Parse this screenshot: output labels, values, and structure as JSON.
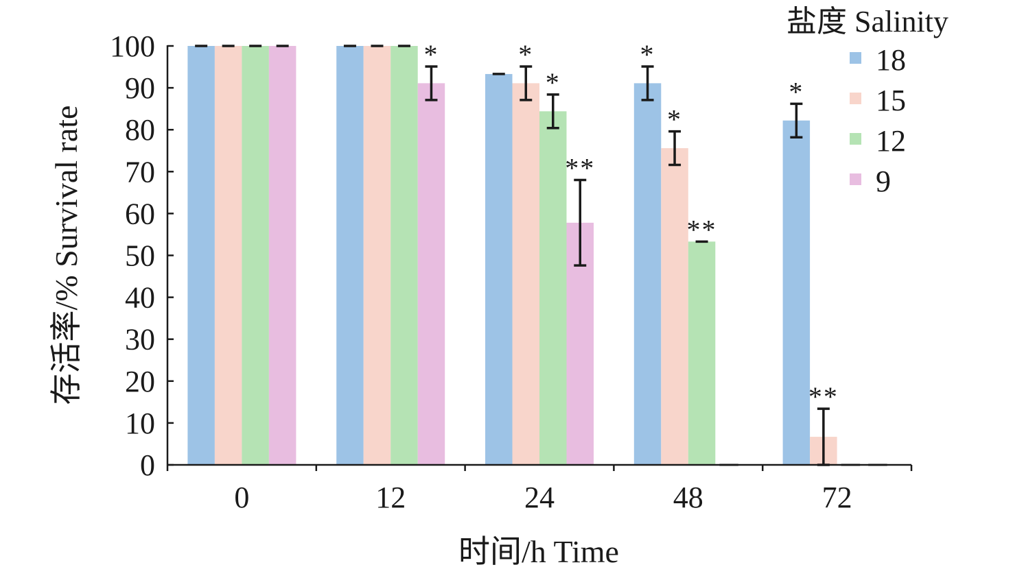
{
  "chart_data": {
    "type": "bar",
    "xlabel": "时间/h Time",
    "ylabel": "存活率/% Survival rate",
    "categories": [
      "0",
      "12",
      "24",
      "48",
      "72"
    ],
    "ylim": [
      0,
      100
    ],
    "yticks": [
      0,
      10,
      20,
      30,
      40,
      50,
      60,
      70,
      80,
      90,
      100
    ],
    "grid": false,
    "legend": {
      "title": "盐度 Salinity",
      "placement": "top-right"
    },
    "series": [
      {
        "name": "18",
        "color": "#9dc3e6",
        "values": [
          100,
          100,
          93.3,
          91.1,
          82.2
        ],
        "errors": [
          0,
          0,
          0,
          4,
          4
        ],
        "marks": [
          "",
          "",
          "",
          "*",
          "*"
        ]
      },
      {
        "name": "15",
        "color": "#f8d5cb",
        "values": [
          100,
          100,
          91.1,
          75.6,
          6.7
        ],
        "errors": [
          0,
          0,
          4,
          4,
          6.7
        ],
        "marks": [
          "",
          "",
          "*",
          "*",
          "**"
        ]
      },
      {
        "name": "12",
        "color": "#b5e3b4",
        "values": [
          100,
          100,
          84.4,
          53.3,
          0
        ],
        "errors": [
          0,
          0,
          4,
          0,
          0
        ],
        "marks": [
          "",
          "",
          "*",
          "**",
          ""
        ]
      },
      {
        "name": "9",
        "color": "#e8bde0",
        "values": [
          100,
          91.1,
          57.8,
          0,
          0
        ],
        "errors": [
          0,
          4,
          10.2,
          0,
          0
        ],
        "marks": [
          "",
          "*",
          "**",
          "",
          ""
        ]
      }
    ]
  }
}
